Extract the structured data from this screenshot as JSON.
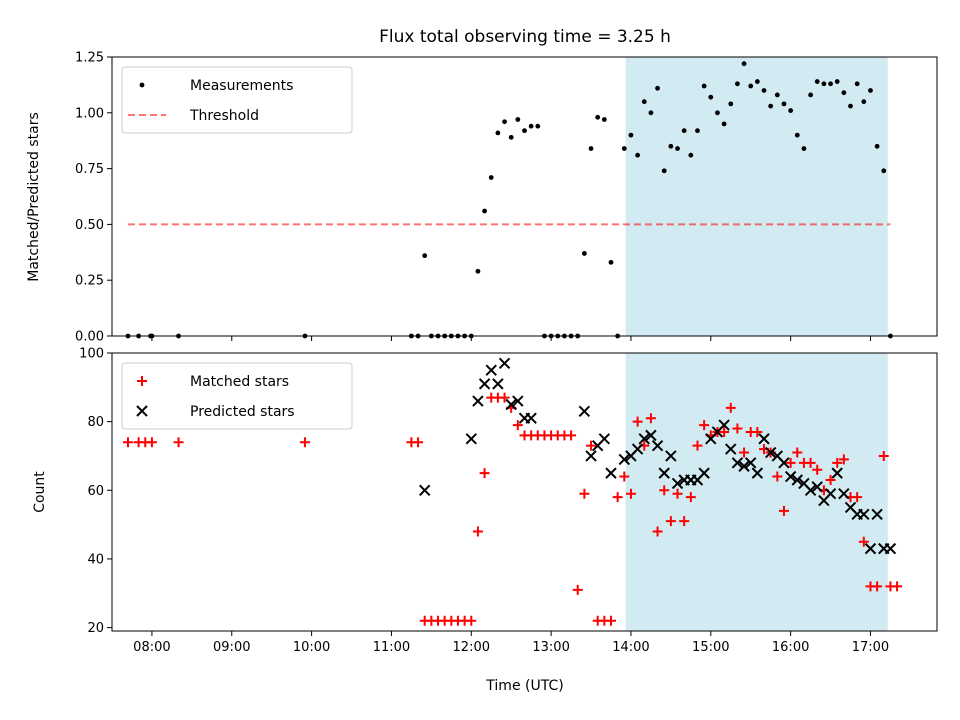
{
  "chart_data": {
    "type": "scatter",
    "title": "Flux total observing time = 3.25 h",
    "xlabel": "Time (UTC)",
    "x_ticks": [
      "08:00",
      "09:00",
      "10:00",
      "11:00",
      "12:00",
      "13:00",
      "14:00",
      "15:00",
      "16:00",
      "17:00"
    ],
    "x_range": [
      "07:30",
      "17:50"
    ],
    "shaded_span": [
      "13:56",
      "17:13"
    ],
    "colors": {
      "shade": "#add8e6",
      "threshold": "#ff0000",
      "matched": "#ff0000",
      "predicted": "#000000",
      "measurements": "#000000"
    },
    "panels": [
      {
        "ylabel": "Matched/Predicted stars",
        "ylim": [
          0,
          1.25
        ],
        "yticks": [
          "0.00",
          "0.25",
          "0.50",
          "0.75",
          "1.00",
          "1.25"
        ],
        "legend_position": "upper-left",
        "series": [
          {
            "name": "Measurements",
            "kind": "points",
            "x": [
              "07:42",
              "07:50",
              "07:59",
              "08:00",
              "08:20",
              "09:55",
              "11:15",
              "11:20",
              "11:25",
              "11:30",
              "11:35",
              "11:40",
              "11:45",
              "11:50",
              "11:55",
              "12:00",
              "12:05",
              "12:10",
              "12:15",
              "12:20",
              "12:25",
              "12:30",
              "12:35",
              "12:40",
              "12:45",
              "12:50",
              "12:55",
              "13:00",
              "13:05",
              "13:10",
              "13:15",
              "13:20",
              "13:25",
              "13:30",
              "13:35",
              "13:40",
              "13:45",
              "13:50",
              "13:55",
              "14:00",
              "14:05",
              "14:10",
              "14:15",
              "14:20",
              "14:25",
              "14:30",
              "14:35",
              "14:40",
              "14:45",
              "14:50",
              "14:55",
              "15:00",
              "15:05",
              "15:10",
              "15:15",
              "15:20",
              "15:25",
              "15:30",
              "15:35",
              "15:40",
              "15:45",
              "15:50",
              "15:55",
              "16:00",
              "16:05",
              "16:10",
              "16:15",
              "16:20",
              "16:25",
              "16:30",
              "16:35",
              "16:40",
              "16:45",
              "16:50",
              "16:55",
              "17:00",
              "17:05",
              "17:10",
              "17:15"
            ],
            "y": [
              0,
              0,
              0,
              0,
              0,
              0,
              0,
              0,
              0.36,
              0,
              0,
              0,
              0,
              0,
              0,
              0,
              0.29,
              0.56,
              0.71,
              0.91,
              0.96,
              0.89,
              0.97,
              0.92,
              0.94,
              0.94,
              0,
              0,
              0,
              0,
              0,
              0,
              0.37,
              0.84,
              0.98,
              0.97,
              0.33,
              0,
              0.84,
              0.9,
              0.81,
              1.05,
              1.0,
              1.11,
              0.74,
              0.85,
              0.84,
              0.92,
              0.81,
              0.92,
              1.12,
              1.07,
              1.0,
              0.95,
              1.04,
              1.13,
              1.22,
              1.12,
              1.14,
              1.1,
              1.03,
              1.08,
              1.04,
              1.01,
              0.9,
              0.84,
              1.08,
              1.14,
              1.13,
              1.13,
              1.14,
              1.09,
              1.03,
              1.13,
              1.05,
              1.1,
              0.85,
              0.74,
              0
            ]
          },
          {
            "name": "Threshold",
            "kind": "dashed-line",
            "x": [
              "07:42",
              "17:15"
            ],
            "y": [
              0.5,
              0.5
            ]
          }
        ]
      },
      {
        "ylabel": "Count",
        "ylim": [
          19,
          100
        ],
        "yticks": [
          "20",
          "40",
          "60",
          "80",
          "100"
        ],
        "legend_position": "upper-left",
        "series": [
          {
            "name": "Matched stars",
            "kind": "plus",
            "x": [
              "07:42",
              "07:50",
              "07:55",
              "08:00",
              "08:20",
              "09:55",
              "11:15",
              "11:20",
              "11:25",
              "11:30",
              "11:35",
              "11:40",
              "11:45",
              "11:50",
              "11:55",
              "12:00",
              "12:05",
              "12:10",
              "12:15",
              "12:20",
              "12:25",
              "12:30",
              "12:35",
              "12:40",
              "12:45",
              "12:50",
              "12:55",
              "13:00",
              "13:05",
              "13:10",
              "13:15",
              "13:20",
              "13:25",
              "13:30",
              "13:35",
              "13:40",
              "13:45",
              "13:50",
              "13:55",
              "14:00",
              "14:05",
              "14:10",
              "14:15",
              "14:20",
              "14:25",
              "14:30",
              "14:35",
              "14:40",
              "14:45",
              "14:50",
              "14:55",
              "15:00",
              "15:05",
              "15:10",
              "15:15",
              "15:20",
              "15:25",
              "15:30",
              "15:35",
              "15:40",
              "15:45",
              "15:50",
              "15:55",
              "16:00",
              "16:05",
              "16:10",
              "16:15",
              "16:20",
              "16:25",
              "16:30",
              "16:35",
              "16:40",
              "16:45",
              "16:50",
              "16:55",
              "17:00",
              "17:05",
              "17:10",
              "17:15",
              "17:20"
            ],
            "y": [
              74,
              74,
              74,
              74,
              74,
              74,
              74,
              74,
              22,
              22,
              22,
              22,
              22,
              22,
              22,
              22,
              48,
              65,
              87,
              87,
              87,
              84,
              79,
              76,
              76,
              76,
              76,
              76,
              76,
              76,
              76,
              31,
              59,
              73,
              22,
              22,
              22,
              58,
              64,
              59,
              80,
              73,
              81,
              48,
              60,
              51,
              59,
              51,
              58,
              73,
              79,
              76,
              77,
              77,
              84,
              78,
              71,
              77,
              77,
              72,
              71,
              64,
              54,
              68,
              71,
              68,
              68,
              66,
              60,
              63,
              68,
              69,
              58,
              58,
              45,
              32,
              32,
              70,
              32,
              32
            ],
            "note_values_read_from_plot": true
          },
          {
            "name": "Predicted stars",
            "kind": "x",
            "x": [
              "11:25",
              "12:00",
              "12:05",
              "12:10",
              "12:15",
              "12:20",
              "12:25",
              "12:30",
              "12:35",
              "12:40",
              "12:45",
              "13:25",
              "13:30",
              "13:35",
              "13:40",
              "13:45",
              "13:55",
              "14:00",
              "14:05",
              "14:10",
              "14:15",
              "14:20",
              "14:25",
              "14:30",
              "14:35",
              "14:40",
              "14:45",
              "14:50",
              "14:55",
              "15:00",
              "15:05",
              "15:10",
              "15:15",
              "15:20",
              "15:25",
              "15:30",
              "15:35",
              "15:40",
              "15:45",
              "15:50",
              "15:55",
              "16:00",
              "16:05",
              "16:10",
              "16:15",
              "16:20",
              "16:25",
              "16:30",
              "16:35",
              "16:40",
              "16:45",
              "16:50",
              "16:55",
              "17:00",
              "17:05",
              "17:10",
              "17:15"
            ],
            "y": [
              60,
              75,
              86,
              91,
              95,
              91,
              97,
              85,
              86,
              81,
              81,
              83,
              70,
              73,
              75,
              65,
              69,
              70,
              72,
              75,
              76,
              73,
              65,
              70,
              62,
              63,
              63,
              63,
              65,
              75,
              77,
              79,
              72,
              68,
              67,
              68,
              65,
              75,
              71,
              70,
              68,
              64,
              63,
              62,
              60,
              61,
              57,
              59,
              65,
              59,
              55,
              53,
              53,
              43,
              53,
              43,
              43
            ]
          }
        ]
      }
    ]
  }
}
